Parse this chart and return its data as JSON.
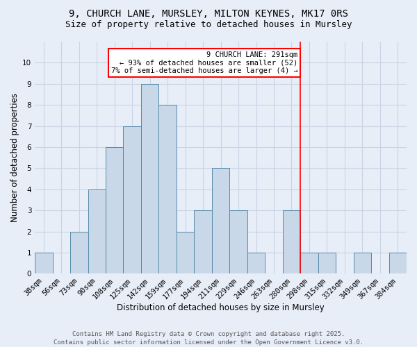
{
  "title_line1": "9, CHURCH LANE, MURSLEY, MILTON KEYNES, MK17 0RS",
  "title_line2": "Size of property relative to detached houses in Mursley",
  "xlabel": "Distribution of detached houses by size in Mursley",
  "ylabel": "Number of detached properties",
  "bins": [
    "38sqm",
    "56sqm",
    "73sqm",
    "90sqm",
    "108sqm",
    "125sqm",
    "142sqm",
    "159sqm",
    "177sqm",
    "194sqm",
    "211sqm",
    "229sqm",
    "246sqm",
    "263sqm",
    "280sqm",
    "298sqm",
    "315sqm",
    "332sqm",
    "349sqm",
    "367sqm",
    "384sqm"
  ],
  "values": [
    1,
    0,
    2,
    4,
    6,
    7,
    9,
    8,
    2,
    3,
    5,
    3,
    1,
    0,
    3,
    1,
    1,
    0,
    1,
    0,
    1
  ],
  "bar_color": "#c8d8e8",
  "bar_edgecolor": "#5588aa",
  "grid_color": "#c8d4e4",
  "background_color": "#e8eef8",
  "vline_x": 14.5,
  "vline_color": "red",
  "annotation_text": "9 CHURCH LANE: 291sqm\n← 93% of detached houses are smaller (52)\n7% of semi-detached houses are larger (4) →",
  "annotation_box_color": "red",
  "annotation_text_color": "black",
  "annotation_bg": "white",
  "ylim": [
    0,
    11
  ],
  "yticks": [
    0,
    1,
    2,
    3,
    4,
    5,
    6,
    7,
    8,
    9,
    10
  ],
  "footer_text": "Contains HM Land Registry data © Crown copyright and database right 2025.\nContains public sector information licensed under the Open Government Licence v3.0.",
  "title_fontsize": 10,
  "subtitle_fontsize": 9,
  "axis_label_fontsize": 8.5,
  "tick_fontsize": 7.5,
  "annotation_fontsize": 7.5,
  "footer_fontsize": 6.5
}
